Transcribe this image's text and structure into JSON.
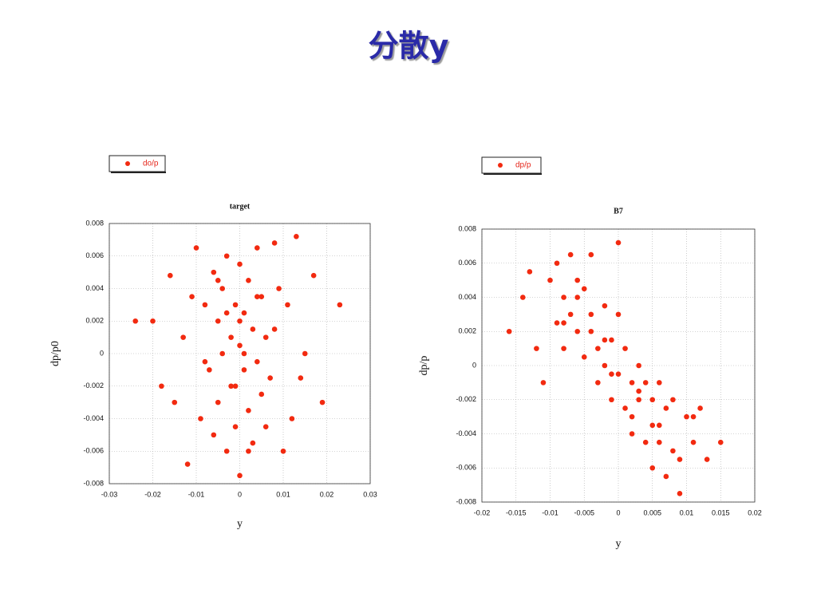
{
  "title": "分散y",
  "chart_data": [
    {
      "type": "scatter",
      "title": "target",
      "x_label": "y",
      "y_label": "dp/p0",
      "xlim": [
        -0.03,
        0.03
      ],
      "xticks": [
        -0.03,
        -0.02,
        -0.01,
        0,
        0.01,
        0.02,
        0.03
      ],
      "ylim": [
        -0.008,
        0.008
      ],
      "yticks": [
        -0.008,
        -0.006,
        -0.004,
        -0.002,
        0,
        0.002,
        0.004,
        0.006,
        0.008
      ],
      "grid": true,
      "series": [
        {
          "name": "do/p",
          "color": "#f22a10",
          "x": [
            -0.024,
            -0.02,
            -0.018,
            -0.015,
            -0.013,
            -0.012,
            -0.01,
            -0.009,
            -0.008,
            -0.007,
            -0.006,
            -0.006,
            -0.005,
            -0.005,
            -0.004,
            -0.004,
            -0.003,
            -0.003,
            -0.002,
            -0.002,
            -0.001,
            -0.001,
            0,
            0,
            0,
            0.001,
            0.001,
            0.002,
            0.002,
            0.003,
            0.003,
            0.004,
            0.004,
            0.005,
            0.005,
            0.006,
            0.007,
            0.008,
            0.009,
            0.01,
            0.011,
            0.012,
            0.013,
            0.015,
            0.017,
            0.019,
            0.023,
            -0.011,
            0.014,
            -0.016,
            0,
            0.006,
            -0.003,
            0.002,
            -0.008,
            0.008,
            0.001,
            -0.001,
            0.004,
            -0.005
          ],
          "values": [
            0.002,
            0.002,
            -0.002,
            -0.003,
            0.001,
            -0.0068,
            0.0065,
            -0.004,
            0.003,
            -0.001,
            0.005,
            -0.005,
            0.002,
            -0.003,
            0,
            0.004,
            -0.006,
            0.006,
            0.001,
            -0.002,
            0.003,
            -0.0045,
            0.0005,
            -0.0075,
            0.0055,
            -0.001,
            0.0025,
            0.0045,
            -0.0035,
            0.0015,
            -0.0055,
            -0.0005,
            0.0065,
            0.0035,
            -0.0025,
            0.001,
            -0.0015,
            0.0068,
            0.004,
            -0.006,
            0.003,
            -0.004,
            0.0072,
            0,
            0.0048,
            -0.003,
            0.003,
            0.0035,
            -0.0015,
            0.0048,
            0.002,
            -0.0045,
            0.0025,
            -0.006,
            -0.0005,
            0.0015,
            0,
            -0.002,
            0.0035,
            0.0045
          ]
        }
      ]
    },
    {
      "type": "scatter",
      "title": "B7",
      "x_label": "y",
      "y_label": "dp/p",
      "xlim": [
        -0.02,
        0.02
      ],
      "xticks": [
        -0.02,
        -0.015,
        -0.01,
        -0.005,
        0,
        0.005,
        0.01,
        0.015,
        0.02
      ],
      "ylim": [
        -0.008,
        0.008
      ],
      "yticks": [
        -0.008,
        -0.006,
        -0.004,
        -0.002,
        0,
        0.002,
        0.004,
        0.006,
        0.008
      ],
      "grid": true,
      "series": [
        {
          "name": "dp/p",
          "color": "#f22a10",
          "x": [
            -0.016,
            -0.014,
            -0.013,
            -0.012,
            -0.011,
            -0.01,
            -0.009,
            -0.009,
            -0.008,
            -0.008,
            -0.007,
            -0.007,
            -0.006,
            -0.006,
            -0.005,
            -0.005,
            -0.004,
            -0.004,
            -0.003,
            -0.003,
            -0.002,
            -0.002,
            -0.001,
            -0.001,
            0,
            0,
            0.001,
            0.001,
            0.002,
            0.002,
            0.003,
            0.003,
            0.004,
            0.004,
            0.005,
            0.005,
            0.006,
            0.006,
            0.007,
            0.007,
            0.008,
            0.008,
            0.009,
            0.01,
            0.011,
            0.012,
            0.013,
            0.015,
            -0.001,
            0.005,
            -0.004,
            0.002,
            -0.006,
            0.009,
            0,
            -0.008,
            0.003,
            0.011,
            -0.002,
            0.006
          ],
          "values": [
            0.002,
            0.004,
            0.0055,
            0.001,
            -0.001,
            0.005,
            0.0025,
            0.006,
            0.004,
            0.001,
            0.0065,
            0.003,
            0.005,
            0.002,
            0.0045,
            0.0005,
            0.003,
            0.0065,
            0.001,
            -0.001,
            0.0035,
            0,
            0.0015,
            -0.002,
            0.0072,
            -0.0005,
            0.001,
            -0.0025,
            -0.001,
            -0.004,
            0,
            -0.002,
            -0.001,
            -0.0045,
            -0.002,
            -0.006,
            -0.0035,
            -0.001,
            -0.0025,
            -0.0065,
            -0.002,
            -0.005,
            -0.0075,
            -0.003,
            -0.0045,
            -0.0025,
            -0.0055,
            -0.0045,
            -0.0005,
            -0.0035,
            0.002,
            -0.003,
            0.004,
            -0.0055,
            0.003,
            0.0025,
            -0.0015,
            -0.003,
            0.0015,
            -0.0045
          ]
        }
      ]
    }
  ]
}
